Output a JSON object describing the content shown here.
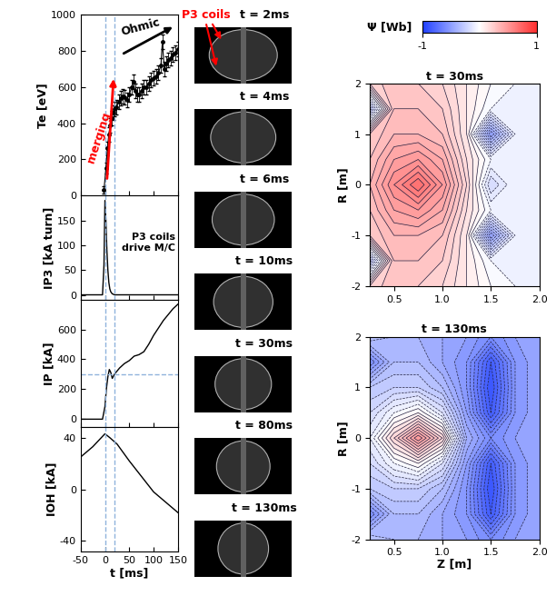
{
  "chart_data": [
    {
      "type": "line",
      "y_label": "Te [eV]",
      "x": [
        -2,
        2,
        5,
        8,
        11,
        14,
        17,
        20,
        24,
        28,
        32,
        36,
        40,
        45,
        50,
        55,
        58,
        62,
        66,
        70,
        75,
        80,
        85,
        90,
        95,
        100,
        105,
        110,
        115,
        118,
        122,
        126,
        130,
        135,
        140,
        145,
        150
      ],
      "values": [
        30,
        150,
        260,
        340,
        390,
        430,
        460,
        480,
        490,
        520,
        540,
        550,
        545,
        530,
        560,
        600,
        630,
        580,
        560,
        560,
        580,
        600,
        600,
        620,
        640,
        650,
        660,
        680,
        720,
        850,
        700,
        730,
        750,
        760,
        780,
        790,
        810
      ],
      "error": [
        20,
        30,
        40,
        40,
        40,
        40,
        40,
        40,
        40,
        40,
        40,
        40,
        40,
        40,
        40,
        40,
        40,
        40,
        40,
        40,
        40,
        40,
        40,
        40,
        40,
        40,
        40,
        40,
        40,
        40,
        40,
        40,
        40,
        40,
        40,
        40,
        40
      ],
      "color": "#000000",
      "marker": "o",
      "xlim": [
        -50,
        150
      ],
      "xticks": [
        -50,
        0,
        50,
        100,
        150
      ],
      "ylim": [
        0,
        1000
      ],
      "yticks": [
        0,
        200,
        400,
        600,
        800,
        1000
      ],
      "tick_labels": "y",
      "reference_x": [
        0,
        20
      ],
      "annotations": [
        "merging",
        "Ohmic"
      ]
    },
    {
      "type": "line",
      "y_label": "IP3 [kA turn]",
      "x": [
        -50,
        -5,
        -2,
        0,
        2,
        4,
        6,
        8,
        10,
        12,
        15,
        20,
        150
      ],
      "values": [
        0,
        0,
        60,
        190,
        150,
        90,
        50,
        25,
        12,
        6,
        2,
        0,
        0
      ],
      "color": "#000000",
      "xlim": [
        -50,
        150
      ],
      "xticks": [
        -50,
        0,
        50,
        100,
        150
      ],
      "ylim": [
        -10,
        200
      ],
      "yticks": [
        0,
        50,
        100,
        150
      ],
      "tick_labels": "y",
      "reference_x": [
        0,
        20
      ],
      "annotations": [
        "P3 coils\ndrive M/C"
      ]
    },
    {
      "type": "line",
      "y_label": "IP [kA]",
      "x": [
        -50,
        -5,
        0,
        3,
        6,
        9,
        12,
        15,
        20,
        30,
        40,
        50,
        60,
        70,
        80,
        90,
        100,
        110,
        120,
        130,
        140,
        150
      ],
      "values": [
        -5,
        -5,
        80,
        200,
        280,
        330,
        310,
        270,
        300,
        340,
        370,
        390,
        420,
        430,
        450,
        500,
        560,
        610,
        660,
        700,
        740,
        770
      ],
      "color": "#000000",
      "xlim": [
        -50,
        150
      ],
      "xticks": [
        -50,
        0,
        50,
        100,
        150
      ],
      "ylim": [
        -60,
        800
      ],
      "yticks": [
        0,
        200,
        400,
        600
      ],
      "tick_labels": "y",
      "reference_x": [
        0,
        20
      ],
      "reference_y": [
        300
      ]
    },
    {
      "type": "line",
      "y_label": "IOH [kA]",
      "x_label": "t [ms]",
      "x": [
        -50,
        -25,
        0,
        10,
        25,
        50,
        75,
        100,
        125,
        150
      ],
      "values": [
        25,
        33,
        43,
        40,
        35,
        22,
        10,
        -2,
        -10,
        -18
      ],
      "color": "#000000",
      "xlim": [
        -50,
        150
      ],
      "xticks": [
        -50,
        0,
        50,
        100,
        150
      ],
      "ylim": [
        -48,
        48
      ],
      "yticks": [
        -40,
        0,
        40
      ],
      "reference_x": [
        0,
        20
      ]
    },
    {
      "type": "contour",
      "title": "t = 30ms",
      "y_label": "R [m]",
      "x": [
        0.25,
        0.5,
        0.75,
        1.0,
        1.25,
        1.5,
        1.75,
        2.0
      ],
      "y": [
        -2,
        -1.5,
        -1,
        -0.5,
        0,
        0.5,
        1,
        1.5,
        2
      ],
      "cells": [
        [
          0.2,
          0.3,
          0.25,
          0.2,
          0.1,
          0.0,
          -0.05,
          -0.05
        ],
        [
          -0.3,
          0.3,
          0.3,
          0.25,
          0.1,
          -0.05,
          -0.05,
          -0.05
        ],
        [
          0.25,
          0.35,
          0.35,
          0.3,
          0.1,
          -0.5,
          -0.1,
          -0.05
        ],
        [
          0.3,
          0.45,
          0.5,
          0.4,
          0.15,
          -0.05,
          -0.05,
          -0.05
        ],
        [
          0.35,
          0.55,
          0.7,
          0.5,
          0.2,
          -0.2,
          -0.05,
          -0.05
        ],
        [
          0.3,
          0.45,
          0.5,
          0.4,
          0.15,
          -0.05,
          -0.05,
          -0.05
        ],
        [
          0.25,
          0.35,
          0.35,
          0.3,
          0.1,
          -0.5,
          -0.1,
          -0.05
        ],
        [
          -0.3,
          0.3,
          0.3,
          0.25,
          0.1,
          -0.05,
          -0.05,
          -0.05
        ],
        [
          0.2,
          0.3,
          0.25,
          0.2,
          0.1,
          0.0,
          -0.05,
          -0.05
        ]
      ],
      "zlim": [
        -1,
        1
      ],
      "xlim": [
        0.25,
        2.0
      ],
      "xticks": [
        0.5,
        {
          "value": 1.0,
          "label": "1.0"
        },
        1.5,
        {
          "value": 2.0,
          "label": "2.0"
        }
      ],
      "ylim": [
        -2,
        2
      ],
      "yticks": [
        -2,
        -1,
        0,
        1,
        2
      ],
      "colorbar": {
        "label": "Ψ [Wb]",
        "range": [
          -1,
          1
        ],
        "ticks": [
          -1,
          1
        ]
      }
    },
    {
      "type": "contour",
      "title": "t = 130ms",
      "y_label": "R [m]",
      "x_label": "Z [m]",
      "x": [
        0.25,
        0.5,
        0.75,
        1.0,
        1.25,
        1.5,
        1.75,
        2.0
      ],
      "y": [
        -2,
        -1.5,
        -1,
        -0.5,
        0,
        0.5,
        1,
        1.5,
        2
      ],
      "cells": [
        [
          -0.3,
          -0.35,
          -0.4,
          -0.45,
          -0.5,
          -0.6,
          -0.5,
          -0.45
        ],
        [
          -0.6,
          -0.35,
          -0.35,
          -0.45,
          -0.55,
          -0.85,
          -0.55,
          -0.45
        ],
        [
          -0.3,
          -0.25,
          -0.25,
          -0.35,
          -0.55,
          -0.9,
          -0.55,
          -0.45
        ],
        [
          -0.2,
          -0.05,
          0.05,
          -0.15,
          -0.5,
          -0.85,
          -0.55,
          -0.45
        ],
        [
          -0.1,
          0.2,
          0.5,
          0.2,
          -0.4,
          -0.6,
          -0.5,
          -0.45
        ],
        [
          -0.2,
          -0.05,
          0.05,
          -0.15,
          -0.5,
          -0.85,
          -0.55,
          -0.45
        ],
        [
          -0.3,
          -0.25,
          -0.25,
          -0.35,
          -0.55,
          -0.9,
          -0.55,
          -0.45
        ],
        [
          -0.6,
          -0.35,
          -0.35,
          -0.45,
          -0.55,
          -0.85,
          -0.55,
          -0.45
        ],
        [
          -0.3,
          -0.35,
          -0.4,
          -0.45,
          -0.5,
          -0.6,
          -0.5,
          -0.45
        ]
      ],
      "zlim": [
        -1,
        1
      ],
      "xlim": [
        0.25,
        2.0
      ],
      "xticks": [
        0.5,
        {
          "value": 1.0,
          "label": "1.0"
        },
        1.5,
        {
          "value": 2.0,
          "label": "2.0"
        }
      ],
      "ylim": [
        -2,
        2
      ],
      "yticks": [
        -2,
        -1,
        0,
        1,
        2
      ]
    }
  ],
  "images": {
    "annotation": "P3 coils",
    "frames": [
      "t = 2ms",
      "t = 4ms",
      "t = 6ms",
      "t = 10ms",
      "t = 30ms",
      "t = 80ms",
      "t = 130ms"
    ]
  }
}
